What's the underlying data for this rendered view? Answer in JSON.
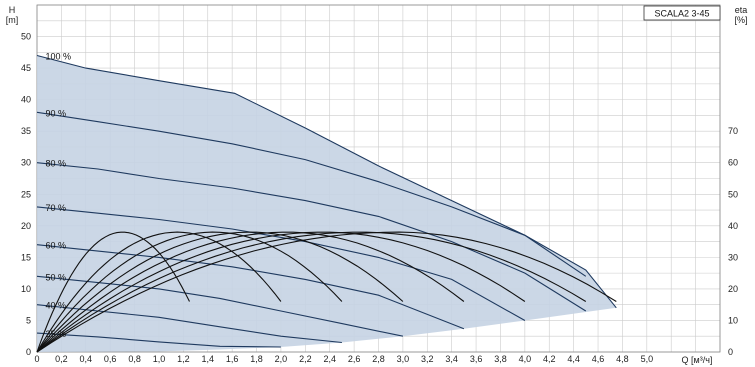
{
  "chart_data": {
    "type": "line",
    "title": "SCALA2 3-45",
    "left_axis_label": [
      "H",
      "[m]"
    ],
    "right_axis_label": [
      "eta",
      "[%]"
    ],
    "x_axis_label": "Q [м³/ч]",
    "xlim": [
      0,
      5.6
    ],
    "ylim_left": [
      0,
      55
    ],
    "ylim_right": [
      0,
      110
    ],
    "x_ticks": [
      "0",
      "0,2",
      "0,4",
      "0,6",
      "0,8",
      "1,0",
      "1,2",
      "1,4",
      "1,6",
      "1,8",
      "2,0",
      "2,2",
      "2,4",
      "2,6",
      "2,8",
      "3,0",
      "3,2",
      "3,4",
      "3,6",
      "3,8",
      "4,0",
      "4,2",
      "4,4",
      "4,6",
      "4,8",
      "5,0"
    ],
    "x_tick_values": [
      0,
      0.2,
      0.4,
      0.6,
      0.8,
      1.0,
      1.2,
      1.4,
      1.6,
      1.8,
      2.0,
      2.2,
      2.4,
      2.6,
      2.8,
      3.0,
      3.2,
      3.4,
      3.6,
      3.8,
      4.0,
      4.2,
      4.4,
      4.6,
      4.8,
      5.0
    ],
    "y_left_ticks": [
      0,
      5,
      10,
      15,
      20,
      25,
      30,
      35,
      40,
      45,
      50
    ],
    "y_right_ticks": [
      0,
      10,
      20,
      30,
      40,
      50,
      60,
      70
    ],
    "grid": true,
    "colors": {
      "fill": "#c5d3e3",
      "head_line": "#1f3a5f",
      "eta_line": "#111111",
      "grid": "#cccccc"
    },
    "envelope_upper": [
      [
        0,
        47
      ],
      [
        0.4,
        45
      ],
      [
        1.0,
        43
      ],
      [
        1.62,
        41
      ],
      [
        2.2,
        35.5
      ],
      [
        2.8,
        29.5
      ],
      [
        3.4,
        24
      ],
      [
        4.0,
        18.5
      ],
      [
        4.5,
        13
      ],
      [
        4.75,
        7
      ]
    ],
    "envelope_lower": [
      [
        4.75,
        7
      ],
      [
        4.0,
        5
      ],
      [
        3.5,
        3.7
      ],
      [
        3.0,
        2.5
      ],
      [
        2.5,
        1.5
      ],
      [
        2.0,
        0.8
      ],
      [
        1.5,
        0.4
      ],
      [
        1.0,
        0.1
      ],
      [
        0,
        0
      ]
    ],
    "head_series": [
      {
        "name": "100 %",
        "points": [
          [
            0,
            47
          ],
          [
            0.4,
            45
          ],
          [
            1.0,
            43
          ],
          [
            1.62,
            41
          ],
          [
            2.2,
            35.5
          ],
          [
            2.8,
            29.5
          ],
          [
            3.4,
            24
          ],
          [
            4.0,
            18.5
          ],
          [
            4.5,
            13
          ],
          [
            4.75,
            7
          ]
        ]
      },
      {
        "name": "90 %",
        "points": [
          [
            0,
            38
          ],
          [
            0.5,
            36.5
          ],
          [
            1.0,
            35
          ],
          [
            1.6,
            33
          ],
          [
            2.2,
            30.5
          ],
          [
            2.8,
            27
          ],
          [
            3.4,
            23
          ],
          [
            4.0,
            18.5
          ],
          [
            4.5,
            12
          ]
        ]
      },
      {
        "name": "80 %",
        "points": [
          [
            0,
            30
          ],
          [
            0.5,
            29
          ],
          [
            1.0,
            27.5
          ],
          [
            1.6,
            26
          ],
          [
            2.2,
            24
          ],
          [
            2.8,
            21.5
          ],
          [
            3.4,
            17.5
          ],
          [
            4.0,
            12.5
          ],
          [
            4.5,
            6.5
          ]
        ]
      },
      {
        "name": "70 %",
        "points": [
          [
            0,
            23
          ],
          [
            0.5,
            22
          ],
          [
            1.0,
            21
          ],
          [
            1.6,
            19.5
          ],
          [
            2.2,
            17.5
          ],
          [
            2.8,
            15
          ],
          [
            3.4,
            11.5
          ],
          [
            4.0,
            5
          ]
        ]
      },
      {
        "name": "60 %",
        "points": [
          [
            0,
            17
          ],
          [
            0.5,
            16
          ],
          [
            1.0,
            15
          ],
          [
            1.6,
            13.5
          ],
          [
            2.2,
            11.5
          ],
          [
            2.8,
            9
          ],
          [
            3.5,
            3.7
          ]
        ]
      },
      {
        "name": "50 %",
        "points": [
          [
            0,
            12
          ],
          [
            0.5,
            11
          ],
          [
            1.0,
            10
          ],
          [
            1.5,
            8.5
          ],
          [
            2.0,
            6.5
          ],
          [
            2.5,
            4.5
          ],
          [
            3.0,
            2.5
          ]
        ]
      },
      {
        "name": "40 %",
        "points": [
          [
            0,
            7.5
          ],
          [
            0.5,
            6.5
          ],
          [
            1.0,
            5.5
          ],
          [
            1.5,
            4
          ],
          [
            2.0,
            2.5
          ],
          [
            2.5,
            1.5
          ]
        ]
      },
      {
        "name": "25 %",
        "points": [
          [
            0,
            3
          ],
          [
            0.5,
            2.4
          ],
          [
            1.0,
            1.6
          ],
          [
            1.5,
            0.9
          ],
          [
            2.0,
            0.8
          ]
        ]
      }
    ],
    "eta_series": [
      {
        "peak_x": 0.7,
        "end_x": 1.25,
        "end_eta": 16
      },
      {
        "peak_x": 1.15,
        "end_x": 2.0,
        "end_eta": 16
      },
      {
        "peak_x": 1.45,
        "end_x": 2.5,
        "end_eta": 16
      },
      {
        "peak_x": 1.75,
        "end_x": 3.0,
        "end_eta": 16
      },
      {
        "peak_x": 2.05,
        "end_x": 3.5,
        "end_eta": 16
      },
      {
        "peak_x": 2.35,
        "end_x": 4.0,
        "end_eta": 16
      },
      {
        "peak_x": 2.65,
        "end_x": 4.5,
        "end_eta": 16
      },
      {
        "peak_x": 2.95,
        "end_x": 4.75,
        "end_eta": 16
      }
    ],
    "eta_peak": 38
  }
}
